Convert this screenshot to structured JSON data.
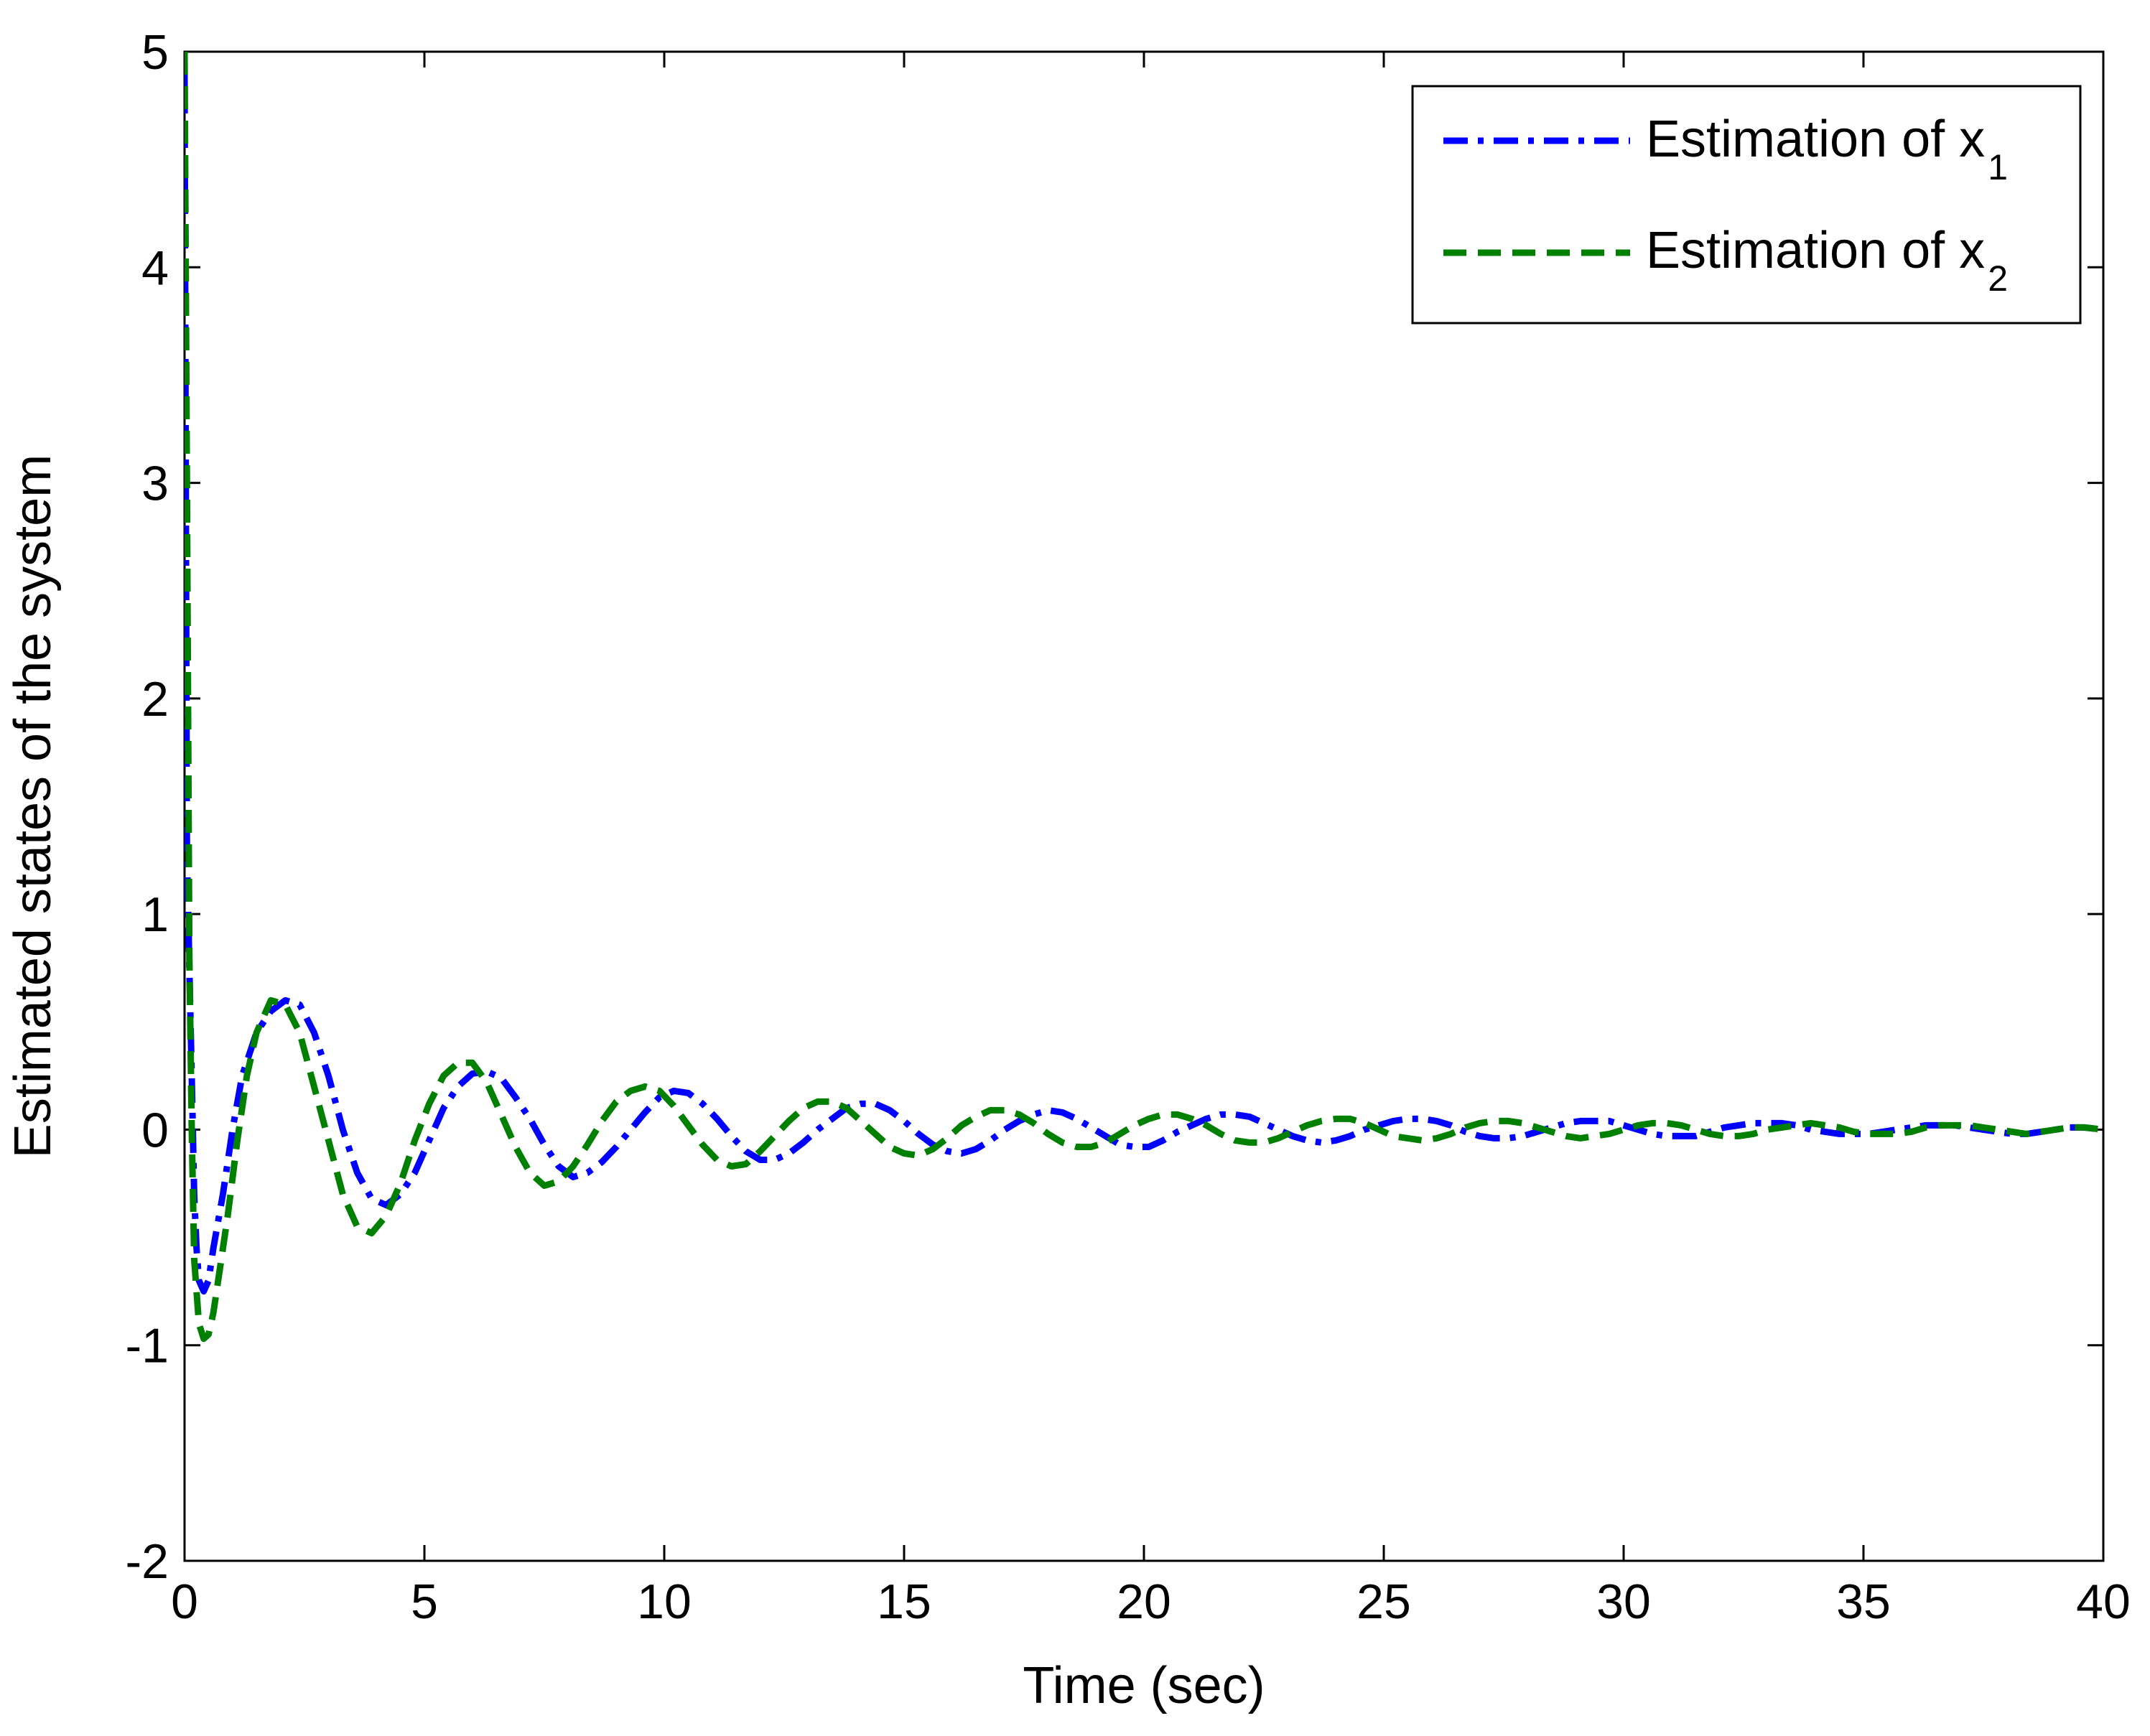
{
  "chart_data": {
    "type": "line",
    "title": "",
    "xlabel": "Time (sec)",
    "ylabel": "Estimated states of the system",
    "xlim": [
      0,
      40
    ],
    "ylim": [
      -2,
      5
    ],
    "xticks": [
      0,
      5,
      10,
      15,
      20,
      25,
      30,
      35,
      40
    ],
    "yticks": [
      -2,
      -1,
      0,
      1,
      2,
      3,
      4,
      5
    ],
    "xtick_labels": [
      "0",
      "5",
      "10",
      "15",
      "20",
      "25",
      "30",
      "35",
      "40"
    ],
    "ytick_labels": [
      "-2",
      "-1",
      "0",
      "1",
      "2",
      "3",
      "4",
      "5"
    ],
    "grid": false,
    "legend_position": "top-right",
    "series": [
      {
        "name": "Estimation of x1",
        "legend_text": "Estimation of x",
        "legend_sub": "1",
        "color": "#0000ff",
        "line_style": "dash-dot",
        "x": [
          0,
          0.05,
          0.1,
          0.15,
          0.2,
          0.25,
          0.3,
          0.4,
          0.5,
          0.6,
          0.8,
          1.0,
          1.2,
          1.5,
          1.8,
          2.1,
          2.4,
          2.7,
          3.0,
          3.3,
          3.6,
          3.9,
          4.2,
          4.5,
          4.8,
          5.1,
          5.4,
          5.7,
          6.0,
          6.3,
          6.6,
          6.9,
          7.2,
          7.5,
          7.8,
          8.1,
          8.4,
          8.7,
          9.0,
          9.3,
          9.6,
          9.9,
          10.2,
          10.5,
          10.8,
          11.1,
          11.4,
          11.7,
          12.0,
          12.3,
          12.6,
          12.9,
          13.2,
          13.5,
          13.8,
          14.1,
          14.4,
          14.7,
          15.0,
          15.3,
          15.6,
          15.9,
          16.2,
          16.5,
          16.8,
          17.1,
          17.4,
          17.7,
          18.0,
          18.3,
          18.6,
          18.9,
          19.2,
          19.5,
          19.8,
          20.1,
          20.4,
          20.7,
          21.0,
          21.3,
          21.6,
          21.9,
          22.2,
          22.5,
          22.8,
          23.1,
          23.4,
          23.7,
          24.0,
          24.3,
          24.6,
          24.9,
          25.2,
          25.5,
          25.8,
          26.1,
          26.4,
          26.7,
          27.0,
          27.3,
          27.6,
          27.9,
          28.2,
          28.5,
          28.8,
          29.1,
          29.4,
          29.7,
          30.0,
          30.3,
          30.6,
          30.9,
          31.2,
          31.5,
          31.8,
          32.1,
          32.4,
          32.7,
          33.0,
          33.3,
          33.6,
          33.9,
          34.2,
          34.5,
          34.8,
          35.1,
          35.4,
          35.7,
          36.0,
          36.3,
          36.6,
          36.9,
          37.2,
          37.5,
          37.8,
          38.1,
          38.4,
          38.7,
          39.0,
          39.3,
          39.6,
          40.0
        ],
        "y": [
          4.9,
          1.3,
          0.75,
          0.25,
          -0.3,
          -0.55,
          -0.7,
          -0.75,
          -0.7,
          -0.55,
          -0.3,
          0.0,
          0.25,
          0.45,
          0.55,
          0.6,
          0.58,
          0.45,
          0.25,
          0.0,
          -0.2,
          -0.32,
          -0.35,
          -0.3,
          -0.2,
          -0.05,
          0.1,
          0.2,
          0.26,
          0.27,
          0.24,
          0.15,
          0.05,
          -0.07,
          -0.17,
          -0.22,
          -0.2,
          -0.15,
          -0.08,
          0.0,
          0.08,
          0.15,
          0.18,
          0.17,
          0.12,
          0.05,
          -0.03,
          -0.1,
          -0.14,
          -0.14,
          -0.11,
          -0.06,
          0.0,
          0.05,
          0.1,
          0.12,
          0.12,
          0.09,
          0.04,
          -0.02,
          -0.07,
          -0.1,
          -0.11,
          -0.09,
          -0.05,
          0.0,
          0.04,
          0.07,
          0.09,
          0.08,
          0.05,
          0.01,
          -0.03,
          -0.07,
          -0.08,
          -0.08,
          -0.05,
          -0.01,
          0.02,
          0.05,
          0.07,
          0.07,
          0.06,
          0.03,
          0.0,
          -0.03,
          -0.05,
          -0.06,
          -0.05,
          -0.03,
          0.0,
          0.02,
          0.04,
          0.05,
          0.05,
          0.04,
          0.02,
          -0.01,
          -0.03,
          -0.04,
          -0.04,
          -0.03,
          -0.01,
          0.01,
          0.03,
          0.04,
          0.04,
          0.04,
          0.02,
          0.0,
          -0.02,
          -0.03,
          -0.03,
          -0.03,
          -0.01,
          0.01,
          0.02,
          0.03,
          0.03,
          0.03,
          0.02,
          0.0,
          -0.01,
          -0.02,
          -0.02,
          -0.02,
          -0.01,
          0.0,
          0.01,
          0.02,
          0.02,
          0.02,
          0.01,
          0.0,
          -0.01,
          -0.02,
          -0.02,
          -0.01,
          0.0,
          0.01,
          0.01,
          0.0
        ]
      },
      {
        "name": "Estimation of x2",
        "legend_text": "Estimation of x",
        "legend_sub": "2",
        "color": "#008000",
        "line_style": "dashed",
        "x": [
          0,
          0.05,
          0.1,
          0.15,
          0.2,
          0.3,
          0.4,
          0.5,
          0.6,
          0.7,
          0.9,
          1.1,
          1.3,
          1.5,
          1.8,
          2.1,
          2.4,
          2.7,
          3.0,
          3.3,
          3.6,
          3.9,
          4.2,
          4.5,
          4.8,
          5.1,
          5.4,
          5.7,
          6.0,
          6.3,
          6.6,
          6.9,
          7.2,
          7.5,
          7.8,
          8.1,
          8.4,
          8.7,
          9.0,
          9.3,
          9.6,
          9.9,
          10.2,
          10.5,
          10.8,
          11.1,
          11.4,
          11.7,
          12.0,
          12.3,
          12.6,
          12.9,
          13.2,
          13.5,
          13.8,
          14.1,
          14.4,
          14.7,
          15.0,
          15.3,
          15.6,
          15.9,
          16.2,
          16.5,
          16.8,
          17.1,
          17.4,
          17.7,
          18.0,
          18.3,
          18.6,
          18.9,
          19.2,
          19.5,
          19.8,
          20.1,
          20.4,
          20.7,
          21.0,
          21.3,
          21.6,
          21.9,
          22.2,
          22.5,
          22.8,
          23.1,
          23.4,
          23.7,
          24.0,
          24.3,
          24.6,
          24.9,
          25.2,
          25.5,
          25.8,
          26.1,
          26.4,
          26.7,
          27.0,
          27.3,
          27.6,
          27.9,
          28.2,
          28.5,
          28.8,
          29.1,
          29.4,
          29.7,
          30.0,
          30.3,
          30.6,
          30.9,
          31.2,
          31.5,
          31.8,
          32.1,
          32.4,
          32.7,
          33.0,
          33.3,
          33.6,
          33.9,
          34.2,
          34.5,
          34.8,
          35.1,
          35.4,
          35.7,
          36.0,
          36.3,
          36.6,
          36.9,
          37.2,
          37.5,
          37.8,
          38.1,
          38.4,
          38.7,
          39.0,
          39.3,
          39.6,
          40.0
        ],
        "y": [
          5.0,
          3.0,
          0.8,
          0.0,
          -0.6,
          -0.9,
          -0.97,
          -0.95,
          -0.85,
          -0.7,
          -0.4,
          -0.05,
          0.25,
          0.45,
          0.6,
          0.58,
          0.45,
          0.2,
          -0.05,
          -0.3,
          -0.45,
          -0.48,
          -0.4,
          -0.25,
          -0.05,
          0.12,
          0.25,
          0.31,
          0.31,
          0.22,
          0.07,
          -0.08,
          -0.2,
          -0.26,
          -0.24,
          -0.17,
          -0.07,
          0.04,
          0.13,
          0.18,
          0.2,
          0.18,
          0.11,
          0.02,
          -0.07,
          -0.14,
          -0.17,
          -0.16,
          -0.1,
          -0.03,
          0.04,
          0.1,
          0.13,
          0.13,
          0.1,
          0.04,
          -0.02,
          -0.08,
          -0.11,
          -0.12,
          -0.09,
          -0.04,
          0.02,
          0.06,
          0.09,
          0.09,
          0.07,
          0.03,
          -0.02,
          -0.06,
          -0.08,
          -0.08,
          -0.06,
          -0.02,
          0.02,
          0.05,
          0.07,
          0.07,
          0.05,
          0.02,
          -0.02,
          -0.05,
          -0.06,
          -0.06,
          -0.04,
          -0.01,
          0.02,
          0.04,
          0.05,
          0.05,
          0.03,
          0.0,
          -0.03,
          -0.04,
          -0.05,
          -0.04,
          -0.02,
          0.01,
          0.03,
          0.04,
          0.04,
          0.03,
          0.01,
          -0.01,
          -0.03,
          -0.04,
          -0.03,
          -0.02,
          0.0,
          0.02,
          0.03,
          0.03,
          0.02,
          0.0,
          -0.02,
          -0.03,
          -0.03,
          -0.02,
          0.0,
          0.01,
          0.02,
          0.03,
          0.02,
          0.01,
          -0.01,
          -0.02,
          -0.02,
          -0.02,
          -0.01,
          0.01,
          0.02,
          0.02,
          0.02,
          0.01,
          0.0,
          -0.01,
          -0.02,
          -0.01,
          0.0,
          0.01,
          0.01,
          0.0
        ]
      }
    ]
  }
}
